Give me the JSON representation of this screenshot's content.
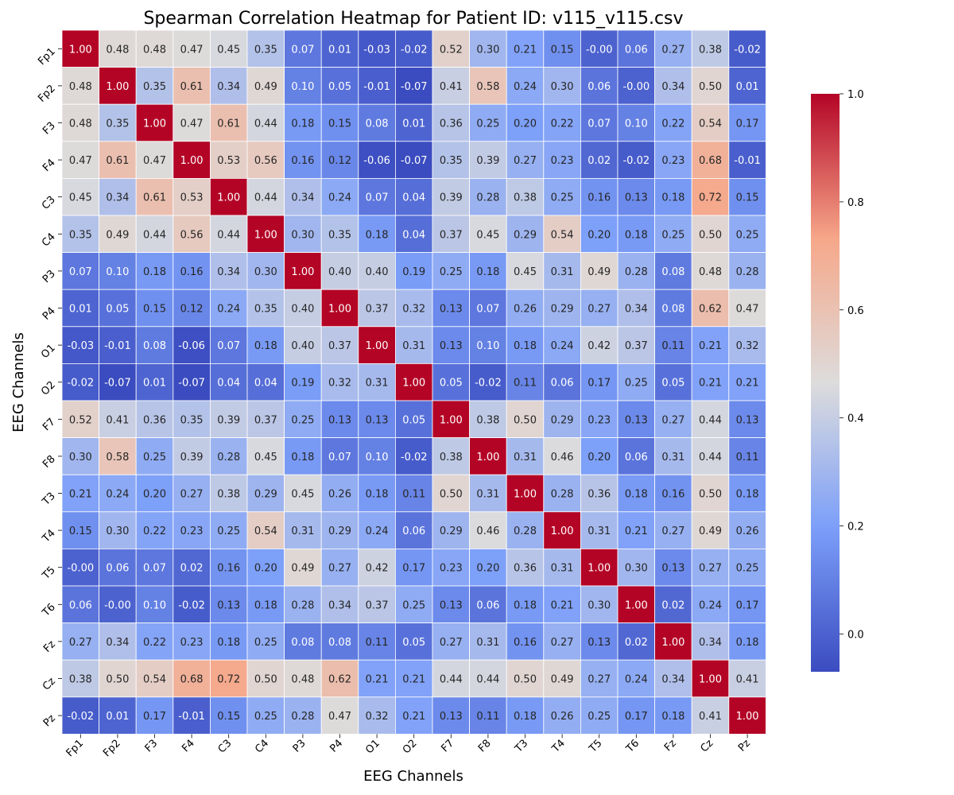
{
  "chart_data": {
    "type": "heatmap",
    "title": "Spearman Correlation Heatmap for Patient ID: v115_v115.csv",
    "xlabel": "EEG Channels",
    "ylabel": "EEG Channels",
    "colormap": "coolwarm",
    "value_format": "2 decimals",
    "x_categories": [
      "Fp1",
      "Fp2",
      "F3",
      "F4",
      "C3",
      "C4",
      "P3",
      "P4",
      "O1",
      "O2",
      "F7",
      "F8",
      "T3",
      "T4",
      "T5",
      "T6",
      "Fz",
      "Cz",
      "Pz"
    ],
    "y_categories": [
      "Fp1",
      "Fp2",
      "F3",
      "F4",
      "C3",
      "C4",
      "P3",
      "P4",
      "O1",
      "O2",
      "F7",
      "F8",
      "T3",
      "T4",
      "T5",
      "T6",
      "Fz",
      "Cz",
      "Pz"
    ],
    "values": [
      [
        "1.00",
        "0.48",
        "0.48",
        "0.47",
        "0.45",
        "0.35",
        "0.07",
        "0.01",
        "-0.03",
        "-0.02",
        "0.52",
        "0.30",
        "0.21",
        "0.15",
        "-0.00",
        "0.06",
        "0.27",
        "0.38",
        "-0.02"
      ],
      [
        "0.48",
        "1.00",
        "0.35",
        "0.61",
        "0.34",
        "0.49",
        "0.10",
        "0.05",
        "-0.01",
        "-0.07",
        "0.41",
        "0.58",
        "0.24",
        "0.30",
        "0.06",
        "-0.00",
        "0.34",
        "0.50",
        "0.01"
      ],
      [
        "0.48",
        "0.35",
        "1.00",
        "0.47",
        "0.61",
        "0.44",
        "0.18",
        "0.15",
        "0.08",
        "0.01",
        "0.36",
        "0.25",
        "0.20",
        "0.22",
        "0.07",
        "0.10",
        "0.22",
        "0.54",
        "0.17"
      ],
      [
        "0.47",
        "0.61",
        "0.47",
        "1.00",
        "0.53",
        "0.56",
        "0.16",
        "0.12",
        "-0.06",
        "-0.07",
        "0.35",
        "0.39",
        "0.27",
        "0.23",
        "0.02",
        "-0.02",
        "0.23",
        "0.68",
        "-0.01"
      ],
      [
        "0.45",
        "0.34",
        "0.61",
        "0.53",
        "1.00",
        "0.44",
        "0.34",
        "0.24",
        "0.07",
        "0.04",
        "0.39",
        "0.28",
        "0.38",
        "0.25",
        "0.16",
        "0.13",
        "0.18",
        "0.72",
        "0.15"
      ],
      [
        "0.35",
        "0.49",
        "0.44",
        "0.56",
        "0.44",
        "1.00",
        "0.30",
        "0.35",
        "0.18",
        "0.04",
        "0.37",
        "0.45",
        "0.29",
        "0.54",
        "0.20",
        "0.18",
        "0.25",
        "0.50",
        "0.25"
      ],
      [
        "0.07",
        "0.10",
        "0.18",
        "0.16",
        "0.34",
        "0.30",
        "1.00",
        "0.40",
        "0.40",
        "0.19",
        "0.25",
        "0.18",
        "0.45",
        "0.31",
        "0.49",
        "0.28",
        "0.08",
        "0.48",
        "0.28"
      ],
      [
        "0.01",
        "0.05",
        "0.15",
        "0.12",
        "0.24",
        "0.35",
        "0.40",
        "1.00",
        "0.37",
        "0.32",
        "0.13",
        "0.07",
        "0.26",
        "0.29",
        "0.27",
        "0.34",
        "0.08",
        "0.62",
        "0.47"
      ],
      [
        "-0.03",
        "-0.01",
        "0.08",
        "-0.06",
        "0.07",
        "0.18",
        "0.40",
        "0.37",
        "1.00",
        "0.31",
        "0.13",
        "0.10",
        "0.18",
        "0.24",
        "0.42",
        "0.37",
        "0.11",
        "0.21",
        "0.32"
      ],
      [
        "-0.02",
        "-0.07",
        "0.01",
        "-0.07",
        "0.04",
        "0.04",
        "0.19",
        "0.32",
        "0.31",
        "1.00",
        "0.05",
        "-0.02",
        "0.11",
        "0.06",
        "0.17",
        "0.25",
        "0.05",
        "0.21",
        "0.21"
      ],
      [
        "0.52",
        "0.41",
        "0.36",
        "0.35",
        "0.39",
        "0.37",
        "0.25",
        "0.13",
        "0.13",
        "0.05",
        "1.00",
        "0.38",
        "0.50",
        "0.29",
        "0.23",
        "0.13",
        "0.27",
        "0.44",
        "0.13"
      ],
      [
        "0.30",
        "0.58",
        "0.25",
        "0.39",
        "0.28",
        "0.45",
        "0.18",
        "0.07",
        "0.10",
        "-0.02",
        "0.38",
        "1.00",
        "0.31",
        "0.46",
        "0.20",
        "0.06",
        "0.31",
        "0.44",
        "0.11"
      ],
      [
        "0.21",
        "0.24",
        "0.20",
        "0.27",
        "0.38",
        "0.29",
        "0.45",
        "0.26",
        "0.18",
        "0.11",
        "0.50",
        "0.31",
        "1.00",
        "0.28",
        "0.36",
        "0.18",
        "0.16",
        "0.50",
        "0.18"
      ],
      [
        "0.15",
        "0.30",
        "0.22",
        "0.23",
        "0.25",
        "0.54",
        "0.31",
        "0.29",
        "0.24",
        "0.06",
        "0.29",
        "0.46",
        "0.28",
        "1.00",
        "0.31",
        "0.21",
        "0.27",
        "0.49",
        "0.26"
      ],
      [
        "-0.00",
        "0.06",
        "0.07",
        "0.02",
        "0.16",
        "0.20",
        "0.49",
        "0.27",
        "0.42",
        "0.17",
        "0.23",
        "0.20",
        "0.36",
        "0.31",
        "1.00",
        "0.30",
        "0.13",
        "0.27",
        "0.25"
      ],
      [
        "0.06",
        "-0.00",
        "0.10",
        "-0.02",
        "0.13",
        "0.18",
        "0.28",
        "0.34",
        "0.37",
        "0.25",
        "0.13",
        "0.06",
        "0.18",
        "0.21",
        "0.30",
        "1.00",
        "0.02",
        "0.24",
        "0.17"
      ],
      [
        "0.27",
        "0.34",
        "0.22",
        "0.23",
        "0.18",
        "0.25",
        "0.08",
        "0.08",
        "0.11",
        "0.05",
        "0.27",
        "0.31",
        "0.16",
        "0.27",
        "0.13",
        "0.02",
        "1.00",
        "0.34",
        "0.18"
      ],
      [
        "0.38",
        "0.50",
        "0.54",
        "0.68",
        "0.72",
        "0.50",
        "0.48",
        "0.62",
        "0.21",
        "0.21",
        "0.44",
        "0.44",
        "0.50",
        "0.49",
        "0.27",
        "0.24",
        "0.34",
        "1.00",
        "0.41"
      ],
      [
        "-0.02",
        "0.01",
        "0.17",
        "-0.01",
        "0.15",
        "0.25",
        "0.28",
        "0.47",
        "0.32",
        "0.21",
        "0.13",
        "0.11",
        "0.18",
        "0.26",
        "0.25",
        "0.17",
        "0.18",
        "0.41",
        "1.00"
      ]
    ],
    "vmin": -0.07,
    "vmax": 1.0,
    "colorbar": {
      "ticks": [
        0.0,
        0.2,
        0.4,
        0.6,
        0.8,
        1.0
      ],
      "tick_labels": [
        "0.0",
        "0.2",
        "0.4",
        "0.6",
        "0.8",
        "1.0"
      ],
      "placement": "right"
    },
    "cell_border_color": "#ffffff",
    "grid": false
  }
}
